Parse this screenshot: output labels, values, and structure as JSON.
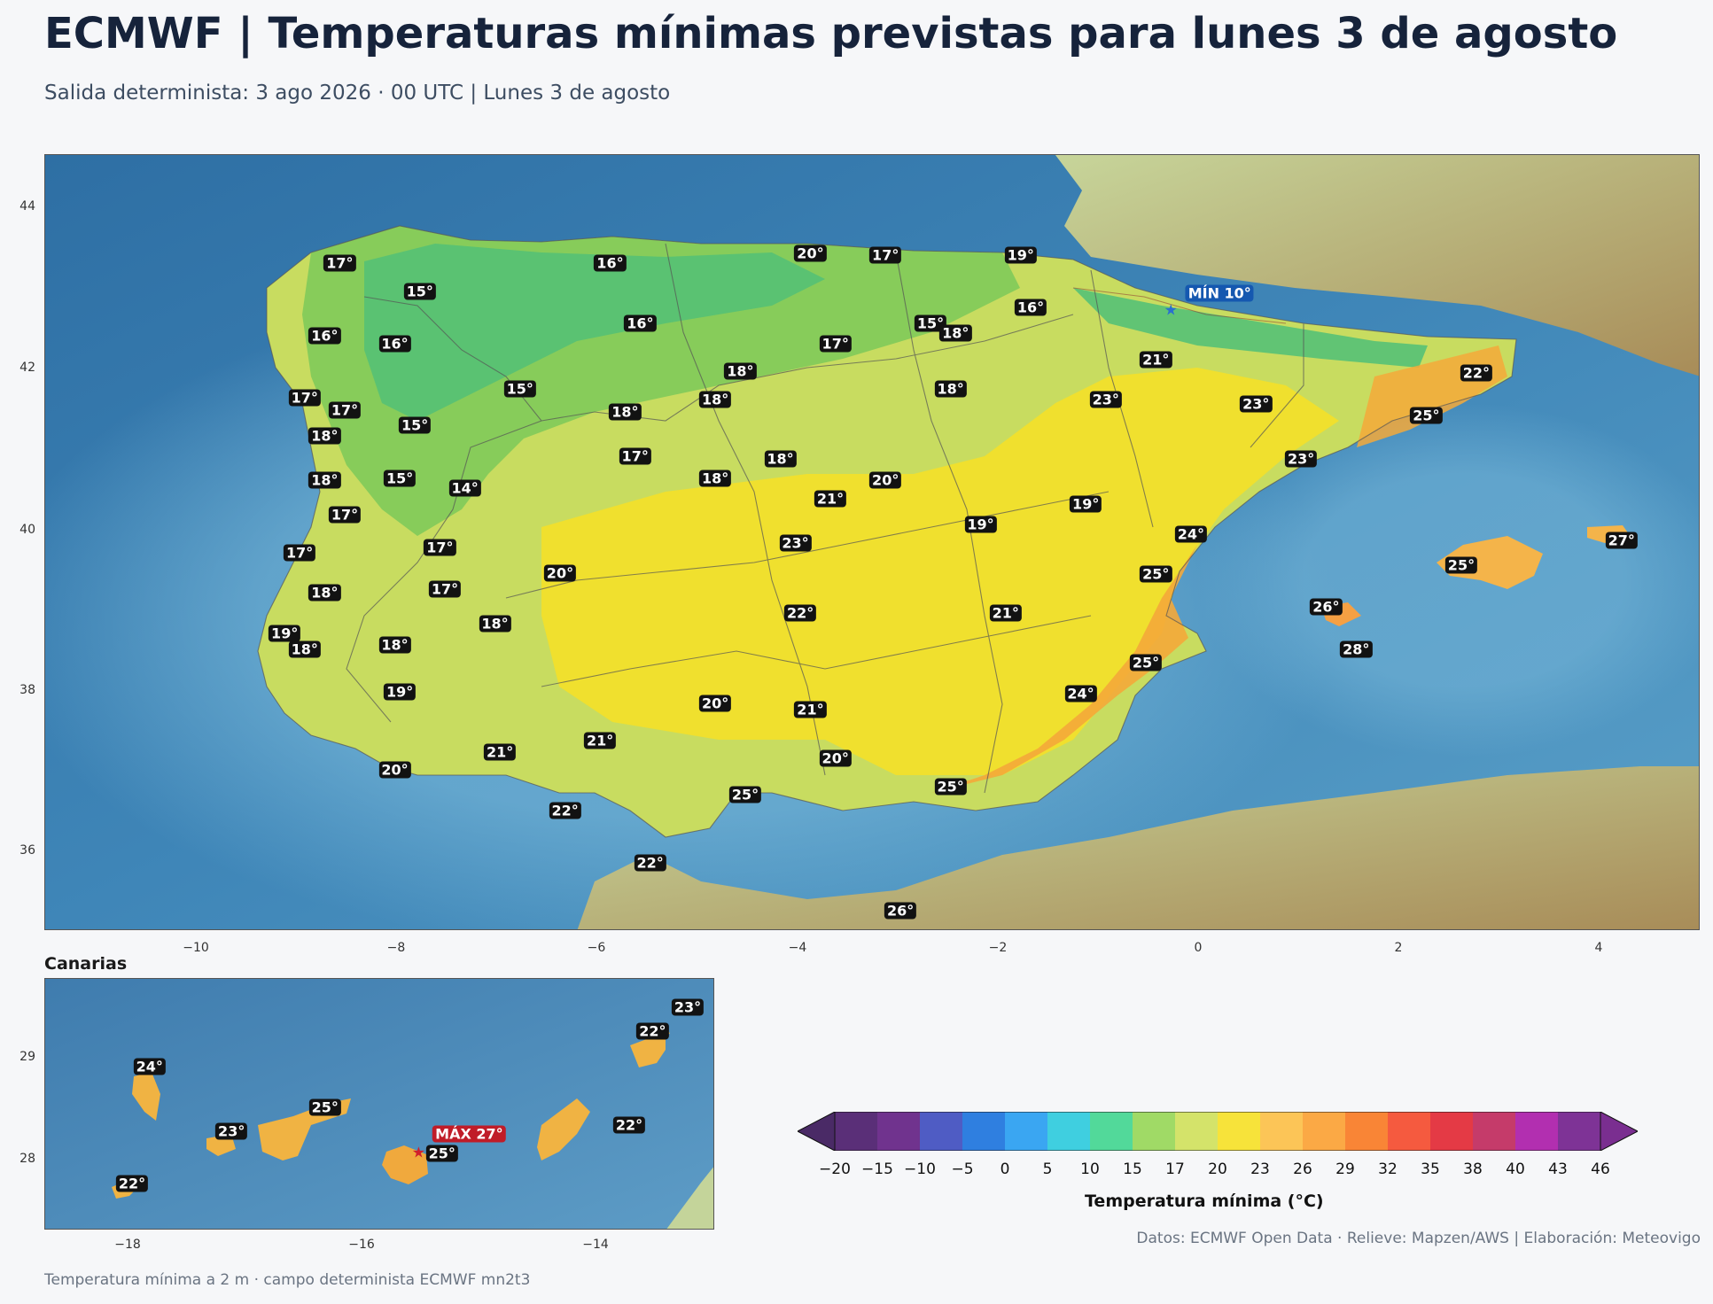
{
  "header": {
    "title": "ECMWF | Temperaturas mínimas previstas para lunes 3 de agosto",
    "subtitle": "Salida determinista: 3 ago 2026 · 00 UTC  |  Lunes 3 de agosto"
  },
  "main_map": {
    "x_ticks": [
      "−10",
      "−8",
      "−6",
      "−4",
      "−2",
      "0",
      "2",
      "4"
    ],
    "y_ticks": [
      "44",
      "42",
      "40",
      "38",
      "36"
    ],
    "labels": [
      {
        "text": "17°",
        "lon": -8.55,
        "lat": 43.35
      },
      {
        "text": "16°",
        "lon": -5.85,
        "lat": 43.35
      },
      {
        "text": "20°",
        "lon": -3.85,
        "lat": 43.47
      },
      {
        "text": "17°",
        "lon": -3.1,
        "lat": 43.45
      },
      {
        "text": "19°",
        "lon": -1.75,
        "lat": 43.45
      },
      {
        "text": "15°",
        "lon": -7.75,
        "lat": 43.0
      },
      {
        "text": "16°",
        "lon": -1.65,
        "lat": 42.8
      },
      {
        "text": "15°",
        "lon": -2.65,
        "lat": 42.6
      },
      {
        "text": "18°",
        "lon": -2.4,
        "lat": 42.48
      },
      {
        "text": "16°",
        "lon": -8.7,
        "lat": 42.45
      },
      {
        "text": "16°",
        "lon": -8.0,
        "lat": 42.35
      },
      {
        "text": "16°",
        "lon": -5.55,
        "lat": 42.6
      },
      {
        "text": "17°",
        "lon": -3.6,
        "lat": 42.35
      },
      {
        "text": "21°",
        "lon": -0.4,
        "lat": 42.15
      },
      {
        "text": "22°",
        "lon": 2.8,
        "lat": 41.98
      },
      {
        "text": "18°",
        "lon": -4.55,
        "lat": 42.0
      },
      {
        "text": "15°",
        "lon": -6.75,
        "lat": 41.78
      },
      {
        "text": "17°",
        "lon": -8.9,
        "lat": 41.68
      },
      {
        "text": "17°",
        "lon": -8.5,
        "lat": 41.52
      },
      {
        "text": "18°",
        "lon": -5.7,
        "lat": 41.5
      },
      {
        "text": "18°",
        "lon": -4.8,
        "lat": 41.65
      },
      {
        "text": "18°",
        "lon": -2.45,
        "lat": 41.78
      },
      {
        "text": "23°",
        "lon": -0.9,
        "lat": 41.65
      },
      {
        "text": "23°",
        "lon": 0.6,
        "lat": 41.6
      },
      {
        "text": "25°",
        "lon": 2.3,
        "lat": 41.45
      },
      {
        "text": "15°",
        "lon": -7.8,
        "lat": 41.33
      },
      {
        "text": "18°",
        "lon": -8.7,
        "lat": 41.2
      },
      {
        "text": "17°",
        "lon": -5.6,
        "lat": 40.95
      },
      {
        "text": "18°",
        "lon": -4.15,
        "lat": 40.92
      },
      {
        "text": "23°",
        "lon": 1.05,
        "lat": 40.92
      },
      {
        "text": "18°",
        "lon": -8.7,
        "lat": 40.65
      },
      {
        "text": "15°",
        "lon": -7.95,
        "lat": 40.67
      },
      {
        "text": "14°",
        "lon": -7.3,
        "lat": 40.55
      },
      {
        "text": "18°",
        "lon": -4.8,
        "lat": 40.67
      },
      {
        "text": "21°",
        "lon": -3.65,
        "lat": 40.42
      },
      {
        "text": "20°",
        "lon": -3.1,
        "lat": 40.65
      },
      {
        "text": "19°",
        "lon": -1.1,
        "lat": 40.35
      },
      {
        "text": "17°",
        "lon": -8.5,
        "lat": 40.22
      },
      {
        "text": "19°",
        "lon": -2.15,
        "lat": 40.1
      },
      {
        "text": "24°",
        "lon": -0.05,
        "lat": 39.98
      },
      {
        "text": "27°",
        "lon": 4.25,
        "lat": 39.9
      },
      {
        "text": "23°",
        "lon": -4.0,
        "lat": 39.87
      },
      {
        "text": "17°",
        "lon": -7.55,
        "lat": 39.82
      },
      {
        "text": "17°",
        "lon": -8.95,
        "lat": 39.75
      },
      {
        "text": "25°",
        "lon": 2.65,
        "lat": 39.6
      },
      {
        "text": "20°",
        "lon": -6.35,
        "lat": 39.5
      },
      {
        "text": "25°",
        "lon": -0.4,
        "lat": 39.48
      },
      {
        "text": "17°",
        "lon": -7.5,
        "lat": 39.3
      },
      {
        "text": "18°",
        "lon": -8.7,
        "lat": 39.25
      },
      {
        "text": "26°",
        "lon": 1.3,
        "lat": 39.08
      },
      {
        "text": "22°",
        "lon": -3.95,
        "lat": 39.0
      },
      {
        "text": "21°",
        "lon": -1.9,
        "lat": 39.0
      },
      {
        "text": "18°",
        "lon": -7.0,
        "lat": 38.87
      },
      {
        "text": "19°",
        "lon": -9.1,
        "lat": 38.75
      },
      {
        "text": "18°",
        "lon": -8.9,
        "lat": 38.55
      },
      {
        "text": "18°",
        "lon": -8.0,
        "lat": 38.6
      },
      {
        "text": "28°",
        "lon": 1.6,
        "lat": 38.55
      },
      {
        "text": "25°",
        "lon": -0.5,
        "lat": 38.38
      },
      {
        "text": "19°",
        "lon": -7.95,
        "lat": 38.02
      },
      {
        "text": "24°",
        "lon": -1.15,
        "lat": 38.0
      },
      {
        "text": "20°",
        "lon": -4.8,
        "lat": 37.88
      },
      {
        "text": "21°",
        "lon": -3.85,
        "lat": 37.8
      },
      {
        "text": "21°",
        "lon": -5.95,
        "lat": 37.42
      },
      {
        "text": "21°",
        "lon": -6.95,
        "lat": 37.27
      },
      {
        "text": "20°",
        "lon": -3.6,
        "lat": 37.2
      },
      {
        "text": "20°",
        "lon": -8.0,
        "lat": 37.05
      },
      {
        "text": "25°",
        "lon": -2.45,
        "lat": 36.85
      },
      {
        "text": "25°",
        "lon": -4.5,
        "lat": 36.75
      },
      {
        "text": "22°",
        "lon": -6.3,
        "lat": 36.55
      },
      {
        "text": "22°",
        "lon": -5.45,
        "lat": 35.9
      },
      {
        "text": "26°",
        "lon": -2.95,
        "lat": 35.3
      }
    ],
    "min_marker": {
      "text": "MÍN 10°",
      "lon": -0.25,
      "lat": 42.75
    }
  },
  "inset": {
    "title": "Canarias",
    "x_ticks": [
      "−18",
      "−16",
      "−14"
    ],
    "y_ticks": [
      "29",
      "28"
    ],
    "labels": [
      {
        "text": "24°",
        "lon": -17.95,
        "lat": 28.85
      },
      {
        "text": "23°",
        "lon": -17.25,
        "lat": 28.22
      },
      {
        "text": "25°",
        "lon": -16.45,
        "lat": 28.45
      },
      {
        "text": "22°",
        "lon": -13.85,
        "lat": 28.28
      },
      {
        "text": "22°",
        "lon": -13.65,
        "lat": 29.2
      },
      {
        "text": "23°",
        "lon": -13.35,
        "lat": 29.43
      },
      {
        "text": "25°",
        "lon": -15.45,
        "lat": 28.0
      },
      {
        "text": "22°",
        "lon": -18.1,
        "lat": 27.7
      }
    ],
    "max_marker": {
      "text": "MÁX 27°",
      "lon": -15.65,
      "lat": 28.0
    }
  },
  "colorbar": {
    "label": "Temperatura mínima (°C)",
    "ticks": [
      "−20",
      "−15",
      "−10",
      "−5",
      "0",
      "5",
      "10",
      "15",
      "17",
      "20",
      "23",
      "26",
      "29",
      "32",
      "35",
      "38",
      "40",
      "43",
      "46"
    ],
    "colors": [
      "#5a2f78",
      "#70338e",
      "#4f5cc4",
      "#2f7fe0",
      "#3aa6f2",
      "#3fcfe0",
      "#52d99a",
      "#a0da66",
      "#d4e36a",
      "#f7e33a",
      "#fcc557",
      "#fba945",
      "#f98536",
      "#f55a3f",
      "#e43a45",
      "#c53b6a",
      "#b22fb0",
      "#7e3396"
    ],
    "under_color": "#4a2a66",
    "over_color": "#7a2e90"
  },
  "footer": {
    "credits": "Datos: ECMWF Open Data · Relieve: Mapzen/AWS  |  Elaboración: Meteovigo",
    "note": "Temperatura mínima a 2 m · campo determinista ECMWF mn2t3"
  }
}
